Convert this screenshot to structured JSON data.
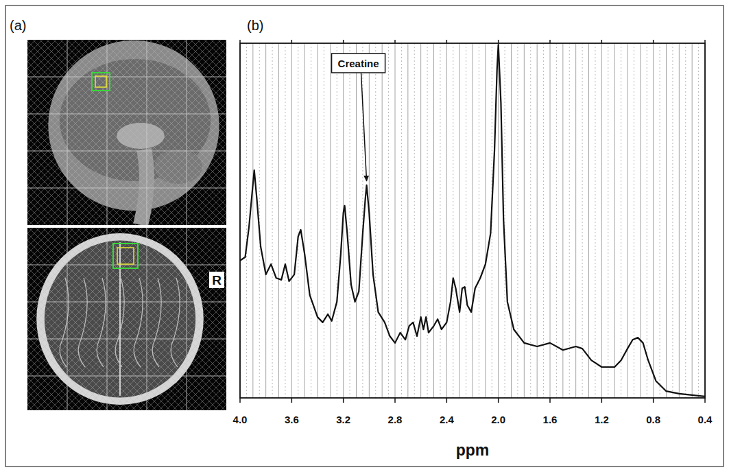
{
  "panels": {
    "a": {
      "label": "(a)",
      "side_label": "R"
    },
    "b": {
      "label": "(b)"
    }
  },
  "chart_data": {
    "type": "line",
    "xlabel": "ppm",
    "color": "#111111",
    "grid": true,
    "tick_labels": "x",
    "xlim": [
      4.0,
      0.4
    ],
    "ylim": [
      0,
      100
    ],
    "xticks": [
      {
        "value": 4.0,
        "label": "4.0"
      },
      3.6,
      3.2,
      2.8,
      2.4,
      {
        "value": 2.0,
        "label": "2.0"
      },
      1.6,
      1.2,
      0.8,
      0.4
    ],
    "annotations": [
      {
        "text": "Creatine",
        "x": 3.02
      }
    ],
    "x": [
      4,
      3.96,
      3.93,
      3.9,
      3.89,
      3.87,
      3.84,
      3.8,
      3.76,
      3.72,
      3.68,
      3.65,
      3.62,
      3.58,
      3.55,
      3.53,
      3.5,
      3.46,
      3.4,
      3.36,
      3.32,
      3.29,
      3.25,
      3.22,
      3.2,
      3.19,
      3.17,
      3.14,
      3.11,
      3.08,
      3.05,
      3.03,
      3.02,
      3.0,
      2.97,
      2.93,
      2.88,
      2.84,
      2.8,
      2.76,
      2.72,
      2.69,
      2.66,
      2.63,
      2.6,
      2.58,
      2.56,
      2.54,
      2.5,
      2.47,
      2.44,
      2.4,
      2.37,
      2.35,
      2.33,
      2.3,
      2.28,
      2.26,
      2.24,
      2.21,
      2.18,
      2.14,
      2.1,
      2.06,
      2.03,
      2.01,
      2.0,
      1.98,
      1.96,
      1.93,
      1.88,
      1.8,
      1.7,
      1.6,
      1.5,
      1.4,
      1.35,
      1.28,
      1.2,
      1.1,
      1.05,
      1.0,
      0.96,
      0.92,
      0.88,
      0.84,
      0.78,
      0.7,
      0.6,
      0.5,
      0.4
    ],
    "values": [
      38.7,
      39.7,
      48.4,
      60.3,
      64.2,
      56.1,
      42.6,
      34.8,
      37.7,
      33.8,
      33.3,
      37.7,
      32.9,
      34.8,
      45.5,
      47.4,
      40.6,
      29.0,
      22.8,
      21.3,
      23.6,
      21.7,
      27.1,
      40.6,
      52.2,
      54.2,
      46.4,
      31.9,
      27.1,
      30.0,
      46.4,
      56.1,
      60.0,
      52.2,
      34.8,
      24.2,
      21.3,
      17.4,
      15.5,
      18.4,
      16.4,
      20.3,
      21.3,
      17.4,
      22.8,
      19.3,
      22.8,
      18.4,
      20.3,
      22.2,
      19.3,
      21.3,
      27.1,
      33.8,
      30.9,
      24.2,
      30.9,
      31.3,
      26.1,
      24.2,
      30.9,
      33.8,
      37.7,
      46.4,
      69.6,
      92.8,
      99.6,
      83.2,
      50.3,
      27.1,
      19.3,
      15.5,
      14.5,
      15.5,
      13.5,
      14.5,
      13.9,
      10.6,
      8.7,
      8.7,
      10.6,
      13.9,
      16.4,
      17.0,
      15.5,
      10.6,
      4.8,
      1.9,
      1.2,
      0.8,
      0.4
    ]
  }
}
